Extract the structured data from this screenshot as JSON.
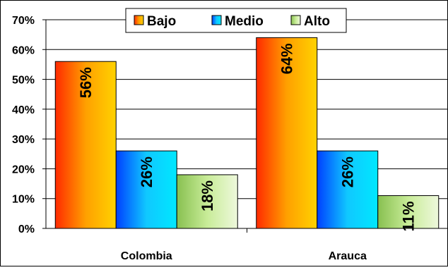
{
  "colors": {
    "bajo": "#ff8c00",
    "medio": "#1e90ff",
    "alto": "#a8d870",
    "frame": "#000000",
    "background": "#ffffff"
  },
  "chart_data": {
    "type": "bar",
    "title": "",
    "xlabel": "",
    "ylabel": "",
    "categories": [
      "Colombia",
      "Arauca"
    ],
    "series": [
      {
        "name": "Bajo",
        "values": [
          56,
          64
        ],
        "labels": [
          "56%",
          "64%"
        ],
        "color": "bajo"
      },
      {
        "name": "Medio",
        "values": [
          26,
          26
        ],
        "labels": [
          "26%",
          "26%"
        ],
        "color": "medio"
      },
      {
        "name": "Alto",
        "values": [
          18,
          11
        ],
        "labels": [
          "18%",
          "11%"
        ],
        "color": "alto"
      }
    ],
    "ylim": [
      0,
      70
    ],
    "yticks": [
      0,
      10,
      20,
      30,
      40,
      50,
      60,
      70
    ],
    "ytick_labels": [
      "0%",
      "10%",
      "20%",
      "30%",
      "40%",
      "50%",
      "60%",
      "70%"
    ],
    "grid": true,
    "legend_position": "top"
  }
}
